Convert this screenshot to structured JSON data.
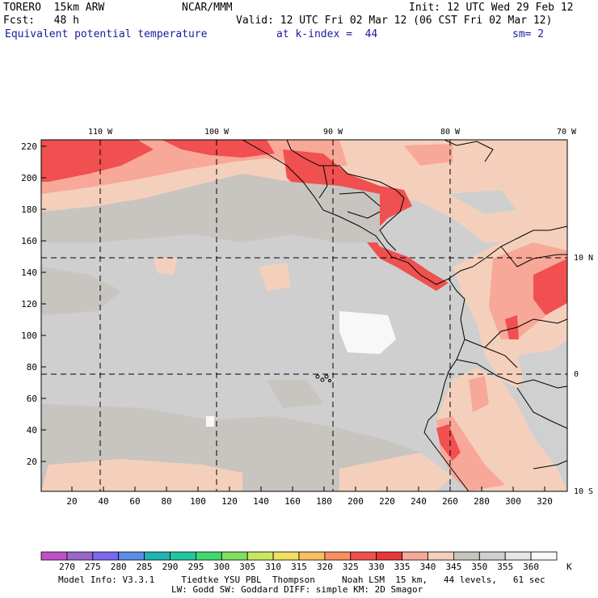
{
  "header": {
    "model": "TORERO  15km ARW",
    "center": "NCAR/MMM",
    "init": "Init: 12 UTC Wed 29 Feb 12",
    "fcst": "Fcst:   48 h",
    "valid": "Valid: 12 UTC Fri 02 Mar 12 (06 CST Fri 02 Mar 12)",
    "field": "Equivalent potential temperature",
    "level": "at k-index =  44",
    "smooth": "sm= 2"
  },
  "map": {
    "lon_labels": [
      "110 W",
      "100 W",
      "90 W",
      "80 W",
      "70 W"
    ],
    "lat_labels": [
      "10 N",
      "0",
      "10 S"
    ],
    "y_ticks": [
      "220",
      "200",
      "180",
      "160",
      "140",
      "120",
      "100",
      "80",
      "60",
      "40",
      "20"
    ],
    "x_ticks": [
      "20",
      "40",
      "60",
      "80",
      "100",
      "120",
      "140",
      "160",
      "180",
      "200",
      "220",
      "240",
      "260",
      "280",
      "300",
      "320"
    ]
  },
  "colorbar": {
    "labels": [
      "270",
      "275",
      "280",
      "285",
      "290",
      "295",
      "300",
      "305",
      "310",
      "315",
      "320",
      "325",
      "330",
      "335",
      "340",
      "345",
      "350",
      "355",
      "360"
    ],
    "unit": "K",
    "colors": [
      "#c050c8",
      "#9966cc",
      "#7b68ee",
      "#5b8ce8",
      "#20b4b4",
      "#20c8a0",
      "#40d870",
      "#80e060",
      "#c8e860",
      "#f0e060",
      "#f8c060",
      "#f89060",
      "#f05050",
      "#e83838",
      "#f8a898",
      "#f4d0bc",
      "#c8c4c0",
      "#d0d0d0",
      "#e6e6e6",
      "#f8f8f8"
    ]
  },
  "footer": {
    "line1": "Model Info: V3.3.1     Tiedtke YSU PBL  Thompson     Noah LSM  15 km,   44 levels,   61 sec",
    "line2": "LW: Godd SW: Goddard DIFF: simple KM: 2D Smagor"
  }
}
